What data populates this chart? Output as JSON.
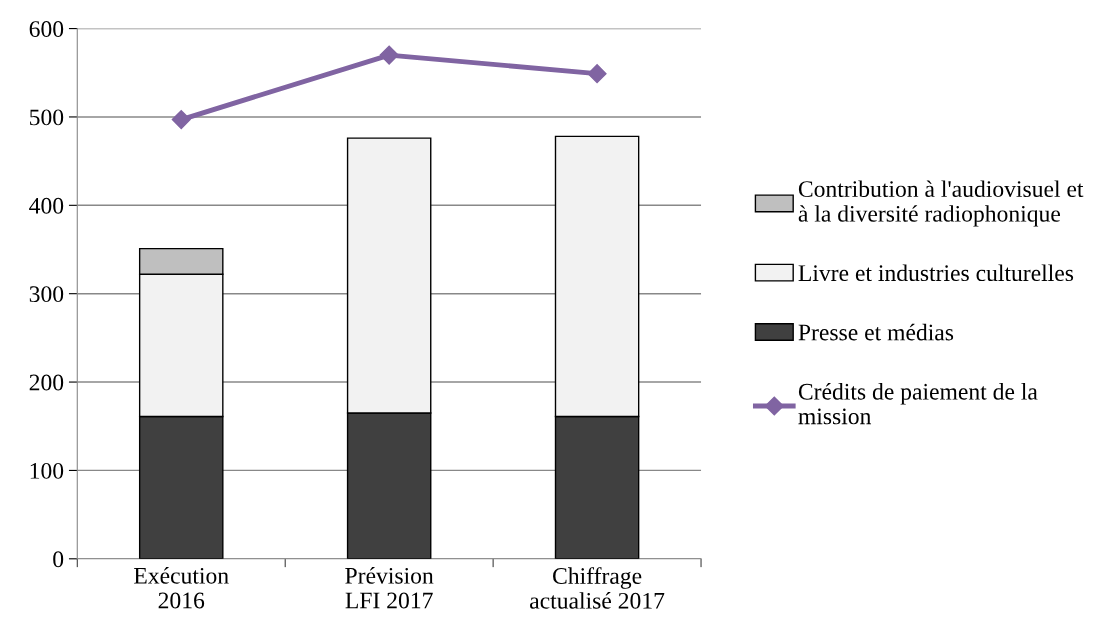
{
  "chart_data": {
    "type": "bar",
    "stacked": true,
    "categories": [
      "Exécution\n2016",
      "Prévision\nLFI 2017",
      "Chiffrage\nactualisé 2017"
    ],
    "series": [
      {
        "name": "Presse et médias",
        "color": "#404040",
        "values": [
          161,
          165,
          161
        ]
      },
      {
        "name": "Livre et industries culturelles",
        "color": "#f2f2f2",
        "values": [
          161,
          311,
          317
        ]
      },
      {
        "name": "Contribution à l'audiovisuel et à la diversité radiophonique",
        "color": "#bfbfbf",
        "values": [
          29,
          null,
          null
        ]
      },
      {
        "name": "Crédits de paiement de la mission",
        "type": "line",
        "color": "#8064a2",
        "marker": "diamond",
        "values": [
          497,
          570,
          549
        ]
      }
    ],
    "ylim": [
      0,
      600
    ],
    "yticks": [
      0,
      100,
      200,
      300,
      400,
      500,
      600
    ],
    "grid": "y",
    "legend": "right"
  }
}
